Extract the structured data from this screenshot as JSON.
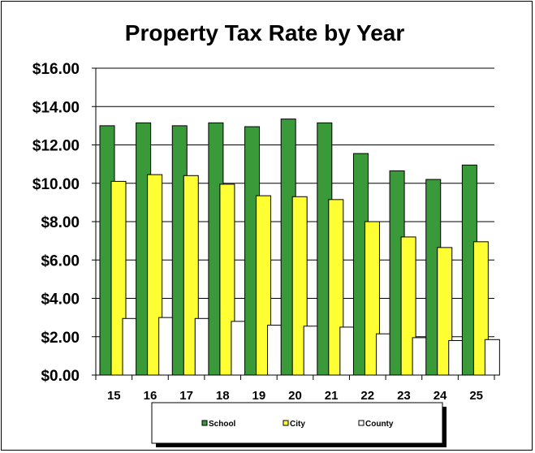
{
  "chart_data": {
    "type": "bar",
    "title": "Property Tax Rate by Year",
    "xlabel": "",
    "ylabel": "",
    "categories": [
      "15",
      "16",
      "17",
      "18",
      "19",
      "20",
      "21",
      "22",
      "23",
      "24",
      "25"
    ],
    "series": [
      {
        "name": "School",
        "color": "#3a9a3a",
        "values": [
          13.0,
          13.15,
          13.0,
          13.15,
          12.95,
          13.35,
          13.15,
          11.55,
          10.65,
          10.2,
          10.95
        ]
      },
      {
        "name": "City",
        "color": "#ffff33",
        "values": [
          10.1,
          10.45,
          10.4,
          9.95,
          9.35,
          9.3,
          9.15,
          8.0,
          7.2,
          6.65,
          6.95
        ]
      },
      {
        "name": "County",
        "color": "#ffffff",
        "values": [
          2.95,
          3.0,
          2.95,
          2.8,
          2.6,
          2.55,
          2.5,
          2.15,
          1.95,
          1.8,
          1.85
        ]
      }
    ],
    "ylim": [
      0,
      16
    ],
    "yticks": [
      "$0.00",
      "$2.00",
      "$4.00",
      "$6.00",
      "$8.00",
      "$10.00",
      "$12.00",
      "$14.00",
      "$16.00"
    ],
    "grid": true,
    "legend": "bottom"
  }
}
